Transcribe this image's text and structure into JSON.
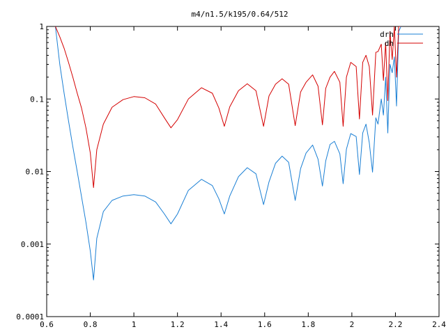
{
  "chart_data": {
    "type": "line",
    "title": "m4/n1.5/k195/0.64/512",
    "xlabel": "",
    "ylabel": "",
    "xlim": [
      0.6,
      2.4
    ],
    "ylim": [
      0.0001,
      1
    ],
    "yscale": "log",
    "grid": false,
    "legend_position": "top-right",
    "x_ticks": [
      0.6,
      0.8,
      1,
      1.2,
      1.4,
      1.6,
      1.8,
      2,
      2.2,
      2.4
    ],
    "x_tick_labels": [
      "0.6",
      "0.8",
      "1",
      "1.2",
      "1.4",
      "1.6",
      "1.8",
      "2",
      "2.2",
      "2.4"
    ],
    "y_ticks": [
      0.0001,
      0.001,
      0.01,
      0.1,
      1
    ],
    "y_tick_labels": [
      "0.0001",
      "0.001",
      "0.01",
      "0.1",
      "1"
    ],
    "series": [
      {
        "name": "drh",
        "color": "#1a7fd4",
        "x": [
          0.64,
          0.66,
          0.68,
          0.7,
          0.72,
          0.74,
          0.76,
          0.78,
          0.8,
          0.815,
          0.83,
          0.86,
          0.9,
          0.95,
          1.0,
          1.05,
          1.1,
          1.14,
          1.17,
          1.2,
          1.25,
          1.31,
          1.36,
          1.39,
          1.415,
          1.44,
          1.48,
          1.52,
          1.56,
          1.595,
          1.62,
          1.65,
          1.68,
          1.71,
          1.74,
          1.765,
          1.79,
          1.82,
          1.845,
          1.865,
          1.88,
          1.9,
          1.92,
          1.945,
          1.96,
          1.975,
          1.995,
          2.02,
          2.035,
          2.05,
          2.065,
          2.08,
          2.095,
          2.11,
          2.12,
          2.135,
          2.145,
          2.155,
          2.165,
          2.175,
          2.185,
          2.195,
          2.205,
          2.215,
          2.225
        ],
        "values": [
          1.0,
          0.3,
          0.12,
          0.05,
          0.022,
          0.01,
          0.0045,
          0.002,
          0.0008,
          0.00032,
          0.0012,
          0.0028,
          0.004,
          0.0046,
          0.0048,
          0.0046,
          0.0038,
          0.0026,
          0.0019,
          0.0026,
          0.0055,
          0.0078,
          0.0064,
          0.0042,
          0.0026,
          0.0046,
          0.0085,
          0.0113,
          0.0093,
          0.0035,
          0.0072,
          0.013,
          0.0163,
          0.0134,
          0.004,
          0.011,
          0.018,
          0.0232,
          0.0148,
          0.0063,
          0.014,
          0.0236,
          0.0261,
          0.0175,
          0.0068,
          0.0203,
          0.0333,
          0.0304,
          0.0091,
          0.034,
          0.045,
          0.025,
          0.0098,
          0.055,
          0.045,
          0.1,
          0.06,
          0.2,
          0.034,
          0.3,
          0.23,
          0.38,
          0.08,
          0.85,
          1.0
        ]
      },
      {
        "name": "dh",
        "color": "#d40000",
        "x": [
          0.64,
          0.66,
          0.68,
          0.7,
          0.72,
          0.74,
          0.76,
          0.78,
          0.8,
          0.815,
          0.83,
          0.86,
          0.9,
          0.95,
          1.0,
          1.05,
          1.1,
          1.14,
          1.17,
          1.2,
          1.25,
          1.31,
          1.36,
          1.39,
          1.415,
          1.44,
          1.48,
          1.52,
          1.56,
          1.595,
          1.62,
          1.65,
          1.68,
          1.71,
          1.74,
          1.765,
          1.79,
          1.82,
          1.845,
          1.865,
          1.88,
          1.9,
          1.92,
          1.945,
          1.96,
          1.975,
          1.995,
          2.02,
          2.035,
          2.05,
          2.065,
          2.08,
          2.095,
          2.11,
          2.12,
          2.135,
          2.145,
          2.155,
          2.165,
          2.175,
          2.185,
          2.195,
          2.205,
          2.215,
          2.225
        ],
        "values": [
          1.0,
          0.72,
          0.5,
          0.32,
          0.2,
          0.12,
          0.075,
          0.04,
          0.018,
          0.006,
          0.02,
          0.045,
          0.077,
          0.098,
          0.108,
          0.104,
          0.085,
          0.055,
          0.04,
          0.052,
          0.1,
          0.143,
          0.12,
          0.075,
          0.042,
          0.078,
          0.13,
          0.162,
          0.13,
          0.042,
          0.11,
          0.16,
          0.19,
          0.16,
          0.043,
          0.125,
          0.17,
          0.215,
          0.15,
          0.044,
          0.14,
          0.2,
          0.24,
          0.17,
          0.042,
          0.2,
          0.32,
          0.28,
          0.053,
          0.32,
          0.4,
          0.28,
          0.06,
          0.44,
          0.45,
          0.57,
          0.18,
          0.6,
          0.095,
          0.85,
          0.35,
          1.0,
          0.2,
          1.0,
          1.0
        ]
      }
    ]
  }
}
